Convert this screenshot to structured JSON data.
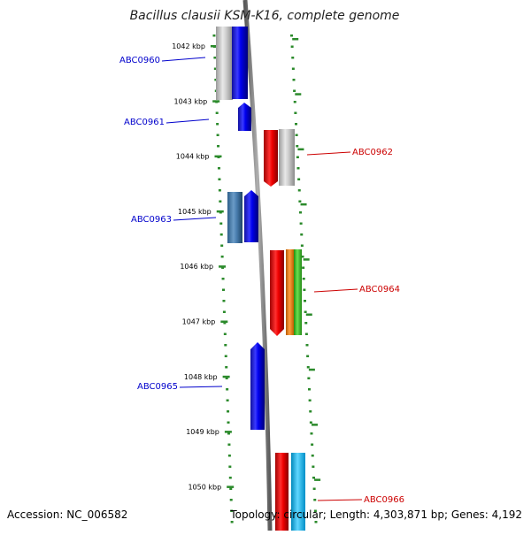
{
  "title": "Bacillus clausii KSM-K16, complete genome",
  "footer": {
    "accession": "Accession: NC_006582",
    "topology": "Topology: circular; Length: 4,303,871 bp; Genes: 4,192"
  },
  "colors": {
    "background": "#ffffff",
    "backbone": "#7a7a7a",
    "axis_dots": "#2b8a2b",
    "left_label": "#0000cc",
    "right_label": "#cc0000"
  },
  "ticks": [
    "1042 kbp",
    "1043 kbp",
    "1044 kbp",
    "1045 kbp",
    "1046 kbp",
    "1047 kbp",
    "1048 kbp",
    "1049 kbp",
    "1050 kbp"
  ],
  "genes": [
    {
      "label": "ABC0960",
      "side": "left",
      "strand": "+",
      "start_kbp": 1041.5,
      "end_kbp": 1042.8,
      "color": "blue"
    },
    {
      "label": "ABC0961",
      "side": "left",
      "strand": "+",
      "start_kbp": 1043.05,
      "end_kbp": 1043.55,
      "color": "blue"
    },
    {
      "label": "ABC0962",
      "side": "right",
      "strand": "-",
      "start_kbp": 1043.55,
      "end_kbp": 1044.55,
      "color": "red"
    },
    {
      "label": "ABC0963",
      "side": "left",
      "strand": "+",
      "start_kbp": 1044.65,
      "end_kbp": 1045.55,
      "color": "blue"
    },
    {
      "label": "ABC0964",
      "side": "right",
      "strand": "-",
      "start_kbp": 1045.8,
      "end_kbp": 1047.3,
      "color": "red"
    },
    {
      "label": "ABC0965",
      "side": "left",
      "strand": "+",
      "start_kbp": 1047.4,
      "end_kbp": 1048.95,
      "color": "blue"
    },
    {
      "label": "ABC0966",
      "side": "right",
      "strand": "-",
      "start_kbp": 1049.4,
      "end_kbp": 1050.8,
      "color": "red"
    }
  ]
}
